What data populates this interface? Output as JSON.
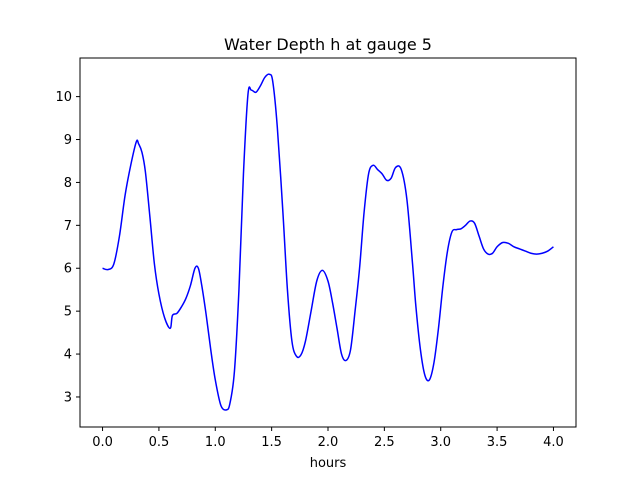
{
  "chart_data": {
    "type": "line",
    "title": "Water Depth h at gauge 5",
    "xlabel": "hours",
    "ylabel": "",
    "xlim": [
      -0.2,
      4.2
    ],
    "ylim": [
      2.3,
      10.9
    ],
    "xticks": [
      0.0,
      0.5,
      1.0,
      1.5,
      2.0,
      2.5,
      3.0,
      3.5,
      4.0
    ],
    "xtick_labels": [
      "0.0",
      "0.5",
      "1.0",
      "1.5",
      "2.0",
      "2.5",
      "3.0",
      "3.5",
      "4.0"
    ],
    "yticks": [
      3,
      4,
      5,
      6,
      7,
      8,
      9,
      10
    ],
    "ytick_labels": [
      "3",
      "4",
      "5",
      "6",
      "7",
      "8",
      "9",
      "10"
    ],
    "grid": false,
    "series": [
      {
        "color": "#0000ff",
        "x": [
          0.0,
          0.05,
          0.1,
          0.15,
          0.2,
          0.25,
          0.3,
          0.32,
          0.35,
          0.38,
          0.42,
          0.46,
          0.5,
          0.55,
          0.6,
          0.62,
          0.66,
          0.7,
          0.74,
          0.78,
          0.82,
          0.85,
          0.88,
          0.92,
          0.96,
          1.0,
          1.05,
          1.1,
          1.13,
          1.17,
          1.21,
          1.25,
          1.29,
          1.32,
          1.36,
          1.4,
          1.44,
          1.48,
          1.51,
          1.55,
          1.6,
          1.64,
          1.68,
          1.72,
          1.76,
          1.8,
          1.85,
          1.9,
          1.95,
          2.0,
          2.04,
          2.08,
          2.12,
          2.16,
          2.2,
          2.24,
          2.28,
          2.32,
          2.36,
          2.4,
          2.44,
          2.48,
          2.52,
          2.56,
          2.6,
          2.65,
          2.7,
          2.75,
          2.78,
          2.82,
          2.86,
          2.9,
          2.94,
          2.98,
          3.02,
          3.06,
          3.1,
          3.14,
          3.18,
          3.22,
          3.26,
          3.3,
          3.34,
          3.38,
          3.42,
          3.46,
          3.5,
          3.55,
          3.6,
          3.65,
          3.7,
          3.75,
          3.8,
          3.85,
          3.9,
          3.95,
          4.0
        ],
        "y": [
          6.0,
          5.97,
          6.1,
          6.75,
          7.7,
          8.4,
          8.95,
          8.9,
          8.7,
          8.25,
          7.2,
          6.1,
          5.4,
          4.85,
          4.6,
          4.9,
          4.95,
          5.1,
          5.3,
          5.6,
          6.0,
          6.0,
          5.6,
          4.9,
          4.1,
          3.4,
          2.8,
          2.7,
          2.85,
          3.6,
          5.5,
          8.2,
          10.05,
          10.15,
          10.1,
          10.25,
          10.45,
          10.52,
          10.35,
          9.3,
          7.3,
          5.5,
          4.3,
          3.95,
          3.98,
          4.3,
          5.0,
          5.7,
          5.95,
          5.7,
          5.2,
          4.6,
          4.0,
          3.85,
          4.1,
          5.0,
          6.0,
          7.3,
          8.2,
          8.4,
          8.3,
          8.2,
          8.05,
          8.1,
          8.35,
          8.3,
          7.6,
          6.1,
          5.1,
          4.1,
          3.5,
          3.4,
          3.8,
          4.6,
          5.6,
          6.4,
          6.85,
          6.9,
          6.92,
          7.0,
          7.1,
          7.05,
          6.75,
          6.45,
          6.33,
          6.35,
          6.5,
          6.6,
          6.58,
          6.5,
          6.45,
          6.4,
          6.35,
          6.33,
          6.35,
          6.4,
          6.5
        ]
      }
    ]
  }
}
